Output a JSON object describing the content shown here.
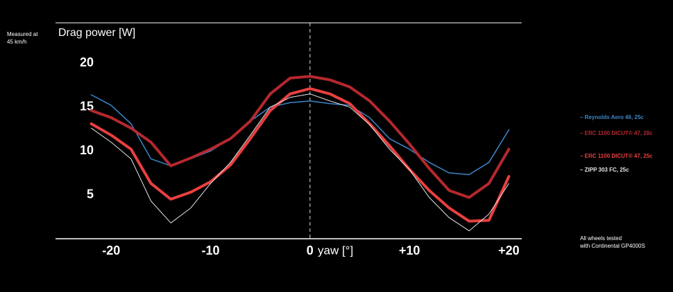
{
  "chart_data": {
    "type": "line",
    "note": [
      "Measured at",
      "45 km/h"
    ],
    "ylabel": "Drag power [W]",
    "xlabel": "yaw [°]",
    "footnote": [
      "All wheels tested",
      "with Continental GP4000S"
    ],
    "x": [
      -22,
      -20,
      -18,
      -16,
      -14,
      -12,
      -10,
      -8,
      -6,
      -4,
      -2,
      0,
      2,
      4,
      6,
      8,
      10,
      12,
      14,
      16,
      18,
      20
    ],
    "xlim": [
      -25.6,
      21.3
    ],
    "xticks": [
      {
        "value": -20,
        "label": "-20"
      },
      {
        "value": -10,
        "label": "-10"
      },
      0,
      {
        "value": 10,
        "label": "+10"
      },
      {
        "value": 20,
        "label": "+20"
      }
    ],
    "ylim": [
      0,
      24.6
    ],
    "yticks": [
      5,
      10,
      15,
      20
    ],
    "series": [
      {
        "name": "– Reynolds Aero 46, 25c",
        "color": "#3b87c9",
        "width": 1.5,
        "values": [
          16.4,
          15.2,
          13.1,
          9.1,
          8.3,
          9.1,
          10,
          11.4,
          13.4,
          15,
          15.5,
          15.7,
          15.4,
          15.2,
          13.8,
          11.4,
          10.2,
          8.7,
          7.5,
          7.3,
          8.7,
          12.4
        ]
      },
      {
        "name": "– ERC 1100 DICUT® 47, 28c",
        "color": "#b5282e",
        "width": 4,
        "values": [
          14.6,
          13.8,
          12.6,
          11,
          8.3,
          9.2,
          10.2,
          11.4,
          13.4,
          16.5,
          18.3,
          18.5,
          18.1,
          17.3,
          15.7,
          13.4,
          10.8,
          8,
          5.5,
          4.7,
          6.3,
          10.2
        ]
      },
      {
        "name": "– ERC 1100 DICUT® 47, 25c",
        "color": "#e8403f",
        "width": 4,
        "values": [
          13.1,
          11.8,
          10.2,
          6.3,
          4.5,
          5.3,
          6.5,
          8.4,
          11.4,
          14.6,
          16.5,
          17.1,
          16.5,
          15.4,
          13.1,
          10.6,
          7.9,
          5.5,
          3.5,
          2,
          2.1,
          7.1
        ]
      },
      {
        "name": "– ZIPP 303 FC, 25c",
        "color": "#e6e6e6",
        "width": 1,
        "values": [
          12.6,
          11,
          9.1,
          4.3,
          1.8,
          3.5,
          6.3,
          8.7,
          11.8,
          15,
          16.1,
          16.5,
          15.7,
          15,
          13,
          10.2,
          7.9,
          4.7,
          2.4,
          0.9,
          2.8,
          6.3
        ]
      }
    ]
  }
}
